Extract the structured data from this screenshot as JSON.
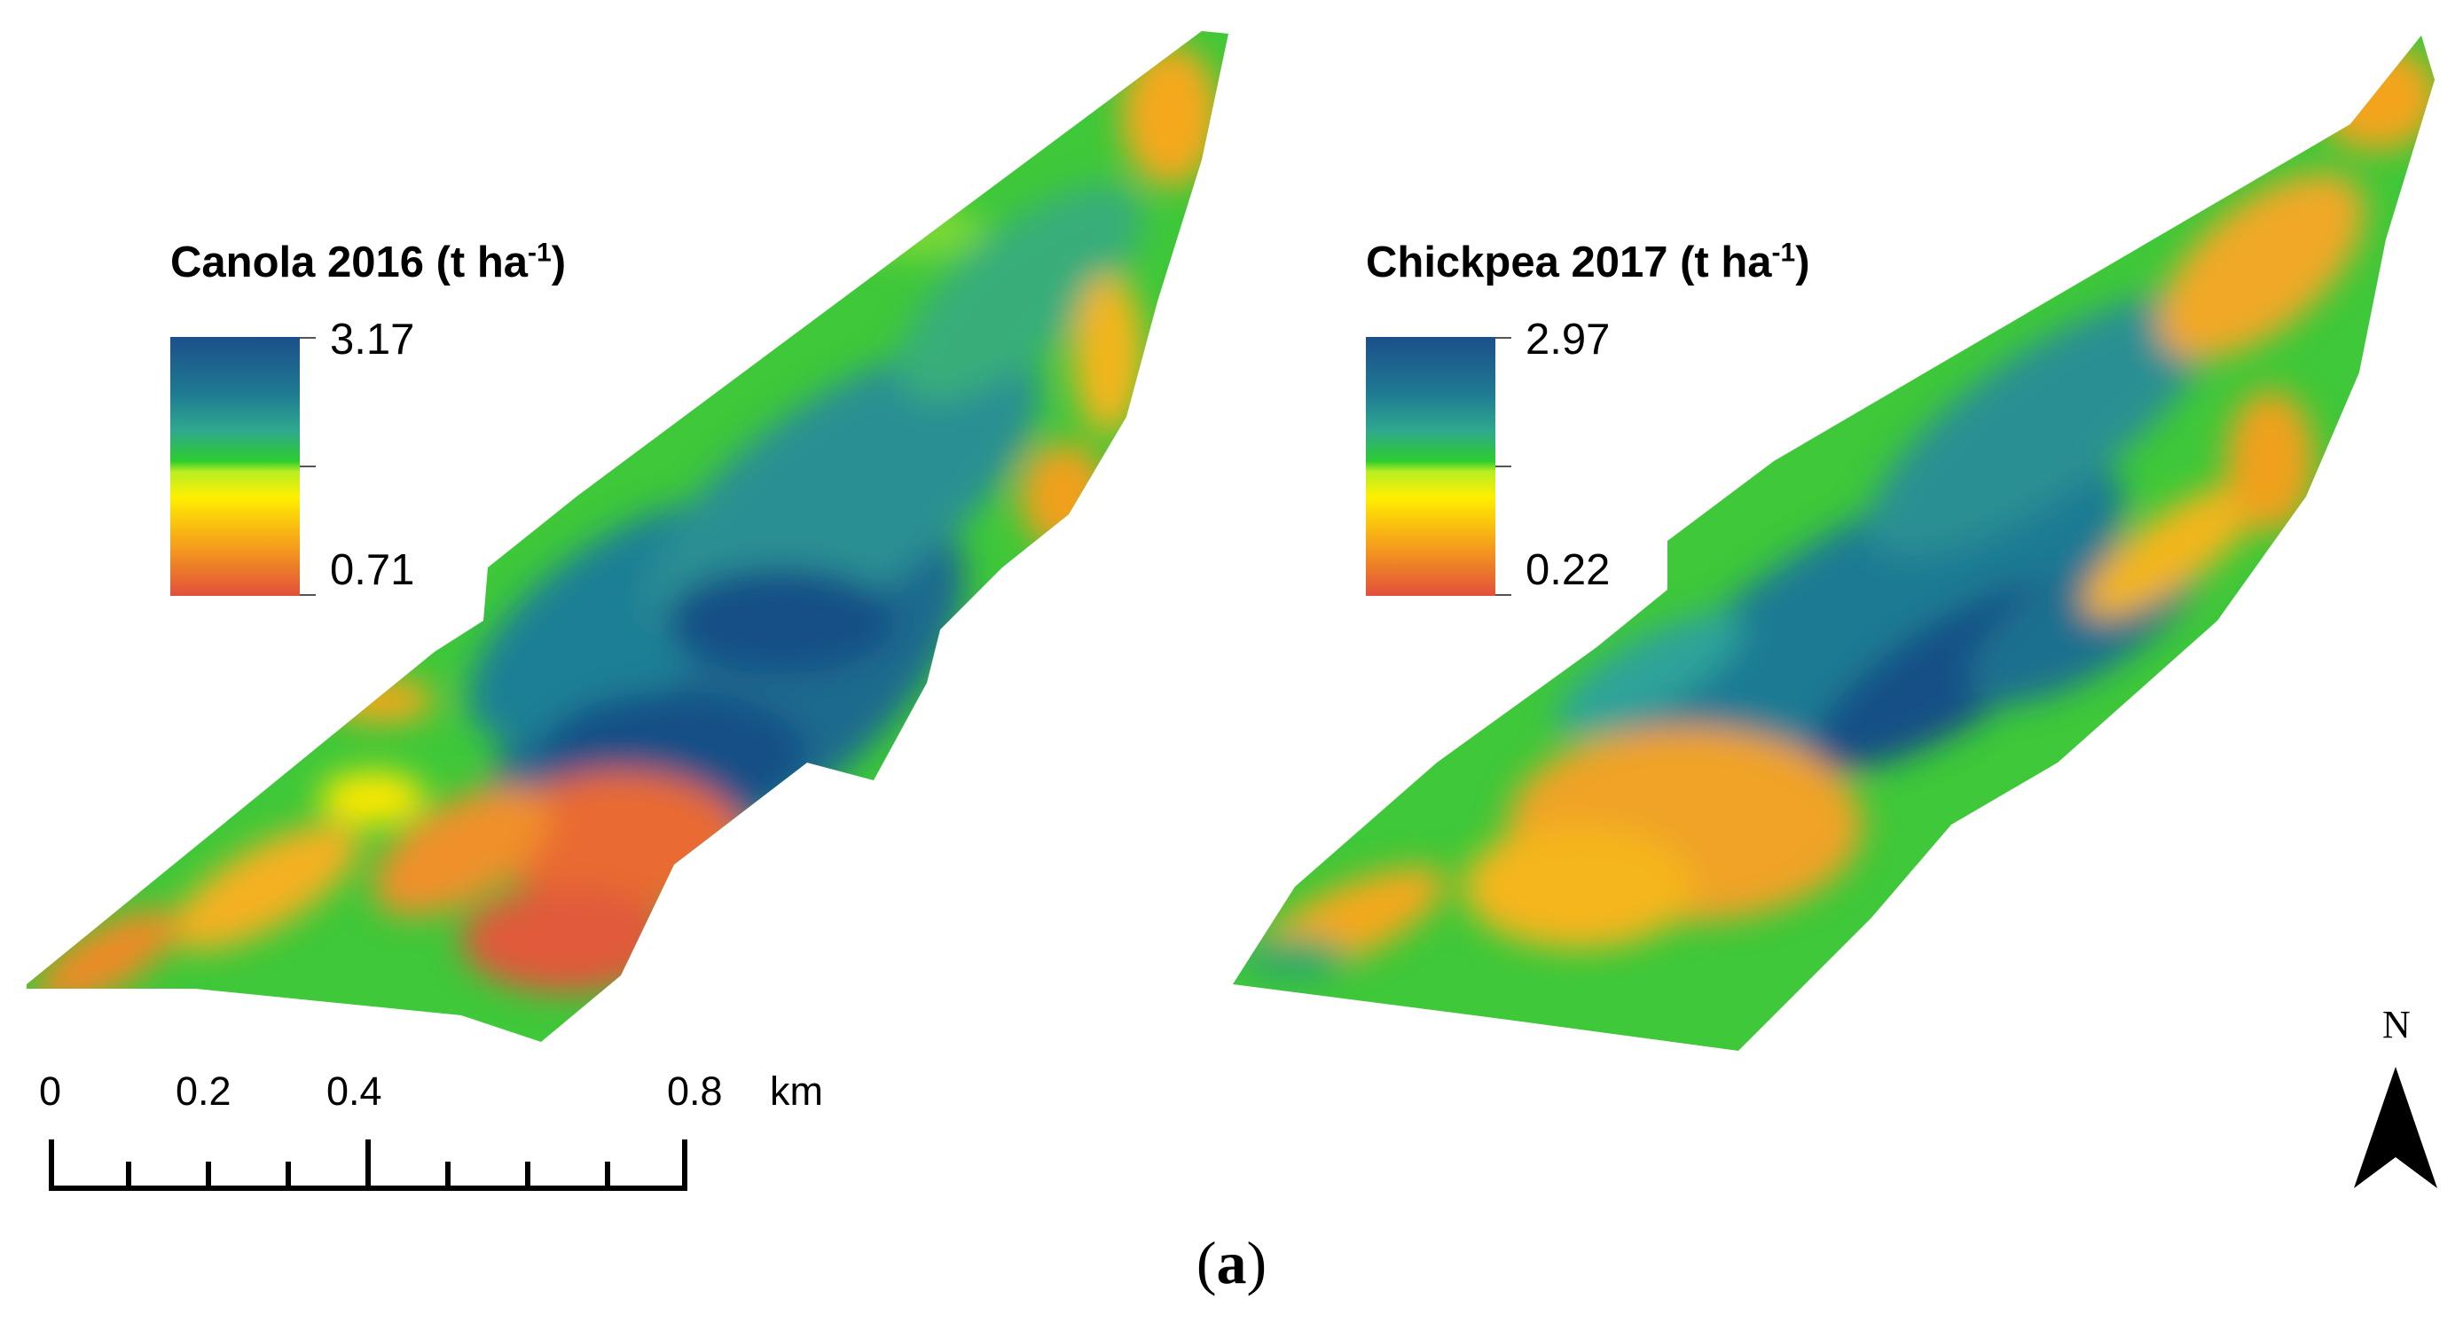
{
  "maps": [
    {
      "id": "canola",
      "title_main": "Canola 2016 (t ha",
      "title_sup": "-1",
      "title_end": ")",
      "legend_max": "3.17",
      "legend_min": "0.71"
    },
    {
      "id": "chickpea",
      "title_main": "Chickpea 2017 (t ha",
      "title_sup": "-1",
      "title_end": ")",
      "legend_max": "2.97",
      "legend_min": "0.22"
    }
  ],
  "scale_bar": {
    "labels": [
      "0",
      "0.2",
      "0.4",
      "0.8"
    ],
    "unit": "km"
  },
  "north_arrow": {
    "label": "N"
  },
  "caption": {
    "open": "(",
    "letter": "a",
    "close": ")"
  },
  "colors": {
    "high": "#1f5e8c",
    "mid_high": "#2fa39a",
    "mid": "#36c43a",
    "mid_low": "#ffe800",
    "low_mid": "#f5a31c",
    "low": "#e1553c"
  }
}
